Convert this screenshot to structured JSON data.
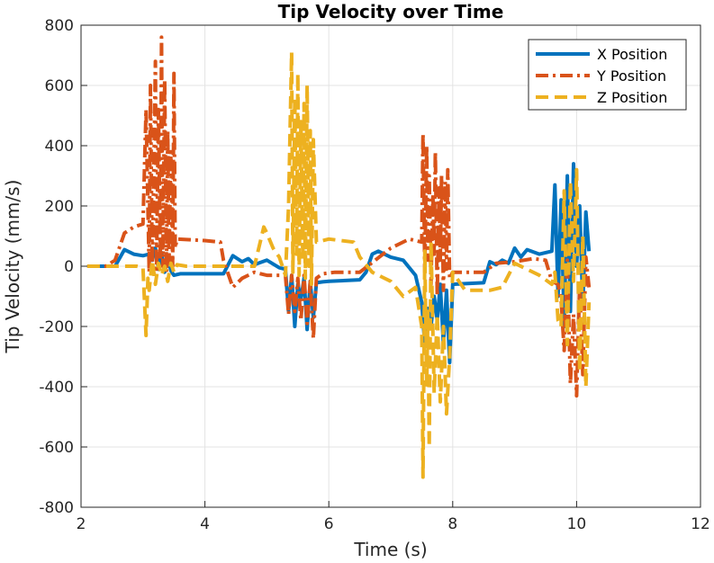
{
  "chart_data": {
    "type": "line",
    "title": "Tip Velocity over Time",
    "xlabel": "Time (s)",
    "ylabel": "Tip Velocity (mm/s)",
    "xlim": [
      2,
      12
    ],
    "ylim": [
      -800,
      800
    ],
    "xticks": [
      2,
      4,
      6,
      8,
      10,
      12
    ],
    "yticks": [
      -800,
      -600,
      -400,
      -200,
      0,
      200,
      400,
      600,
      800
    ],
    "grid": true,
    "legend_position": "top-right",
    "series": [
      {
        "name": "X Position",
        "color": "#0072BD",
        "style": "solid",
        "x": [
          2.1,
          2.55,
          2.7,
          2.85,
          3.0,
          3.1,
          3.15,
          3.2,
          3.25,
          3.3,
          3.35,
          3.4,
          3.45,
          3.5,
          3.6,
          4.3,
          4.45,
          4.6,
          4.7,
          4.8,
          5.0,
          5.2,
          5.3,
          5.35,
          5.4,
          5.45,
          5.5,
          5.55,
          5.6,
          5.65,
          5.7,
          5.75,
          5.8,
          5.9,
          6.0,
          6.5,
          6.6,
          6.7,
          6.8,
          7.0,
          7.2,
          7.4,
          7.5,
          7.55,
          7.6,
          7.65,
          7.7,
          7.75,
          7.8,
          7.85,
          7.9,
          7.95,
          8.0,
          8.2,
          8.5,
          8.6,
          8.7,
          8.8,
          8.9,
          9.0,
          9.1,
          9.2,
          9.4,
          9.6,
          9.65,
          9.7,
          9.75,
          9.8,
          9.85,
          9.9,
          9.95,
          10.0,
          10.05,
          10.1,
          10.15,
          10.2
        ],
        "y": [
          0,
          0,
          55,
          40,
          35,
          40,
          20,
          60,
          -10,
          45,
          -20,
          30,
          -15,
          -30,
          -25,
          -25,
          35,
          15,
          25,
          5,
          20,
          -5,
          -10,
          -150,
          -30,
          -200,
          -60,
          -110,
          -40,
          -210,
          -50,
          -170,
          -55,
          -52,
          -50,
          -45,
          -20,
          40,
          50,
          30,
          20,
          -30,
          -120,
          -260,
          -140,
          -200,
          -100,
          -180,
          -60,
          -260,
          -80,
          -320,
          -60,
          -58,
          -55,
          15,
          5,
          20,
          10,
          60,
          30,
          55,
          40,
          50,
          270,
          -100,
          220,
          -200,
          300,
          -150,
          340,
          0,
          200,
          -130,
          180,
          50
        ]
      },
      {
        "name": "Y Position",
        "color": "#D95319",
        "style": "dashdot",
        "x": [
          2.1,
          2.4,
          2.55,
          2.7,
          2.85,
          3.0,
          3.05,
          3.1,
          3.12,
          3.15,
          3.18,
          3.2,
          3.22,
          3.25,
          3.28,
          3.3,
          3.32,
          3.35,
          3.38,
          3.4,
          3.42,
          3.45,
          3.48,
          3.5,
          3.52,
          3.55,
          4.0,
          4.25,
          4.3,
          4.45,
          4.6,
          4.8,
          5.0,
          5.2,
          5.3,
          5.35,
          5.4,
          5.45,
          5.5,
          5.55,
          5.6,
          5.65,
          5.7,
          5.75,
          5.8,
          5.9,
          6.1,
          6.5,
          7.0,
          7.3,
          7.5,
          7.52,
          7.55,
          7.58,
          7.6,
          7.62,
          7.65,
          7.68,
          7.7,
          7.72,
          7.75,
          7.78,
          7.8,
          7.82,
          7.85,
          7.88,
          7.9,
          7.92,
          7.95,
          8.0,
          8.5,
          8.7,
          9.0,
          9.3,
          9.5,
          9.6,
          9.7,
          9.75,
          9.8,
          9.85,
          9.9,
          9.95,
          10.0,
          10.05,
          10.1,
          10.15,
          10.2
        ],
        "y": [
          0,
          0,
          20,
          110,
          130,
          140,
          520,
          -20,
          600,
          0,
          380,
          680,
          -10,
          520,
          20,
          760,
          0,
          620,
          -20,
          450,
          10,
          380,
          0,
          640,
          60,
          90,
          85,
          80,
          20,
          -70,
          -40,
          -20,
          -30,
          -30,
          -30,
          -160,
          -30,
          -150,
          -40,
          -180,
          -30,
          -190,
          -50,
          -240,
          -40,
          -25,
          -20,
          -20,
          60,
          90,
          80,
          440,
          -20,
          400,
          20,
          300,
          -60,
          240,
          40,
          380,
          -100,
          260,
          20,
          300,
          -80,
          280,
          -10,
          320,
          -40,
          -20,
          -20,
          10,
          15,
          25,
          20,
          -50,
          -60,
          -110,
          -280,
          20,
          -390,
          -160,
          -430,
          -60,
          -360,
          30,
          -70
        ]
      },
      {
        "name": "Z Position",
        "color": "#EDB120",
        "style": "dashed",
        "x": [
          2.1,
          2.6,
          2.9,
          3.0,
          3.05,
          3.08,
          3.1,
          3.15,
          3.2,
          3.25,
          3.3,
          3.35,
          3.4,
          3.45,
          3.5,
          3.55,
          3.7,
          4.0,
          4.3,
          4.5,
          4.8,
          4.95,
          5.0,
          5.1,
          5.2,
          5.3,
          5.35,
          5.4,
          5.42,
          5.45,
          5.48,
          5.5,
          5.52,
          5.55,
          5.58,
          5.6,
          5.62,
          5.65,
          5.68,
          5.7,
          5.72,
          5.75,
          5.8,
          6.0,
          6.4,
          6.5,
          6.7,
          7.0,
          7.2,
          7.4,
          7.5,
          7.52,
          7.55,
          7.58,
          7.6,
          7.62,
          7.65,
          7.7,
          7.75,
          7.8,
          7.85,
          7.9,
          7.95,
          8.0,
          8.2,
          8.6,
          8.8,
          9.0,
          9.4,
          9.6,
          9.65,
          9.7,
          9.75,
          9.8,
          9.85,
          9.9,
          9.95,
          10.0,
          10.05,
          10.1,
          10.15,
          10.2
        ],
        "y": [
          0,
          0,
          0,
          -5,
          -230,
          -40,
          -80,
          20,
          -60,
          10,
          -30,
          0,
          -50,
          10,
          -20,
          5,
          0,
          0,
          0,
          0,
          0,
          130,
          110,
          60,
          30,
          -30,
          200,
          710,
          -20,
          560,
          40,
          640,
          -30,
          480,
          20,
          540,
          -40,
          600,
          0,
          450,
          -60,
          420,
          80,
          90,
          80,
          30,
          -20,
          -50,
          -100,
          -70,
          -200,
          -700,
          50,
          -400,
          -150,
          -600,
          80,
          -420,
          -160,
          -450,
          -200,
          -490,
          -300,
          -20,
          -80,
          -80,
          -70,
          10,
          -30,
          -60,
          -20,
          -180,
          -200,
          250,
          -260,
          280,
          -50,
          320,
          -350,
          100,
          -400,
          -120
        ]
      }
    ]
  }
}
